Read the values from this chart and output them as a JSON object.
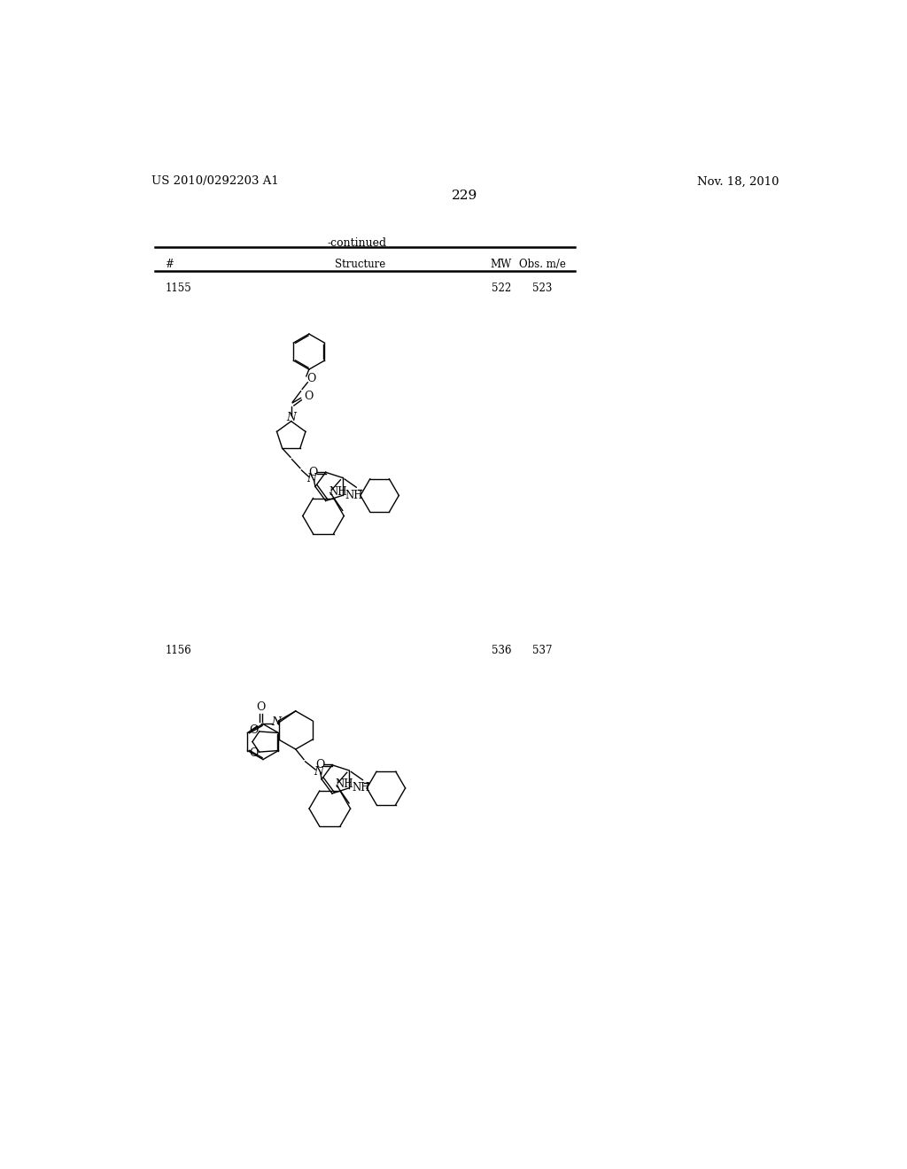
{
  "bg_color": "#ffffff",
  "patent_number": "US 2010/0292203 A1",
  "patent_date": "Nov. 18, 2010",
  "page_number": "229",
  "continued_text": "-continued",
  "table_header": [
    "#",
    "Structure",
    "MW",
    "Obs. m/e"
  ],
  "compound1_num": "1155",
  "compound1_mw": "522",
  "compound1_obs": "523",
  "compound2_num": "1156",
  "compound2_mw": "536",
  "compound2_obs": "537"
}
